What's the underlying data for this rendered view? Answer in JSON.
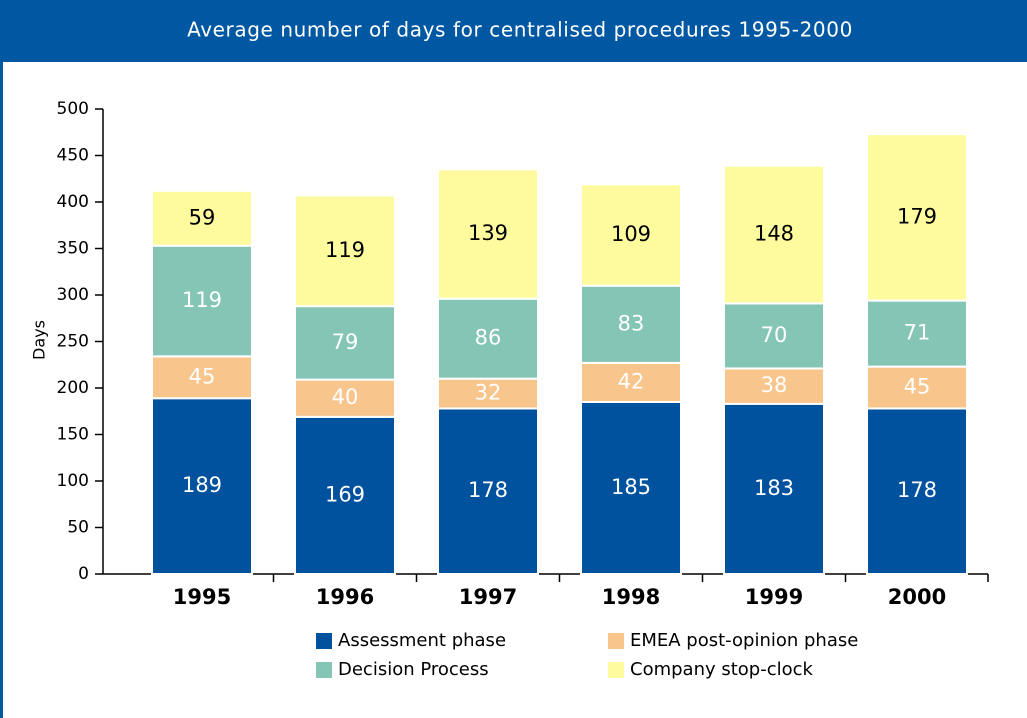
{
  "chart_data": {
    "type": "stacked_bar",
    "title": "Average number of days for centralised procedures 1995-2000",
    "y_label": "Days",
    "categories": [
      "1995",
      "1996",
      "1997",
      "1998",
      "1999",
      "2000"
    ],
    "series": [
      {
        "name": "Assessment phase",
        "color": "#00529f",
        "label_color": "#ffffff",
        "values": [
          189,
          169,
          178,
          185,
          183,
          178
        ]
      },
      {
        "name": "EMEA post-opinion phase",
        "color": "#f8c68c",
        "label_color": "#ffffff",
        "values": [
          45,
          40,
          32,
          42,
          38,
          45
        ]
      },
      {
        "name": "Decision Process",
        "color": "#85c5b6",
        "label_color": "#ffffff",
        "values": [
          119,
          79,
          86,
          83,
          70,
          71
        ]
      },
      {
        "name": "Company stop-clock",
        "color": "#fdfb9e",
        "label_color": "#000000",
        "values": [
          59,
          119,
          139,
          109,
          148,
          179
        ]
      }
    ],
    "ylim": [
      0,
      500
    ],
    "yticks": [
      0,
      50,
      100,
      150,
      200,
      250,
      300,
      350,
      400,
      450,
      500
    ],
    "grid": false
  }
}
